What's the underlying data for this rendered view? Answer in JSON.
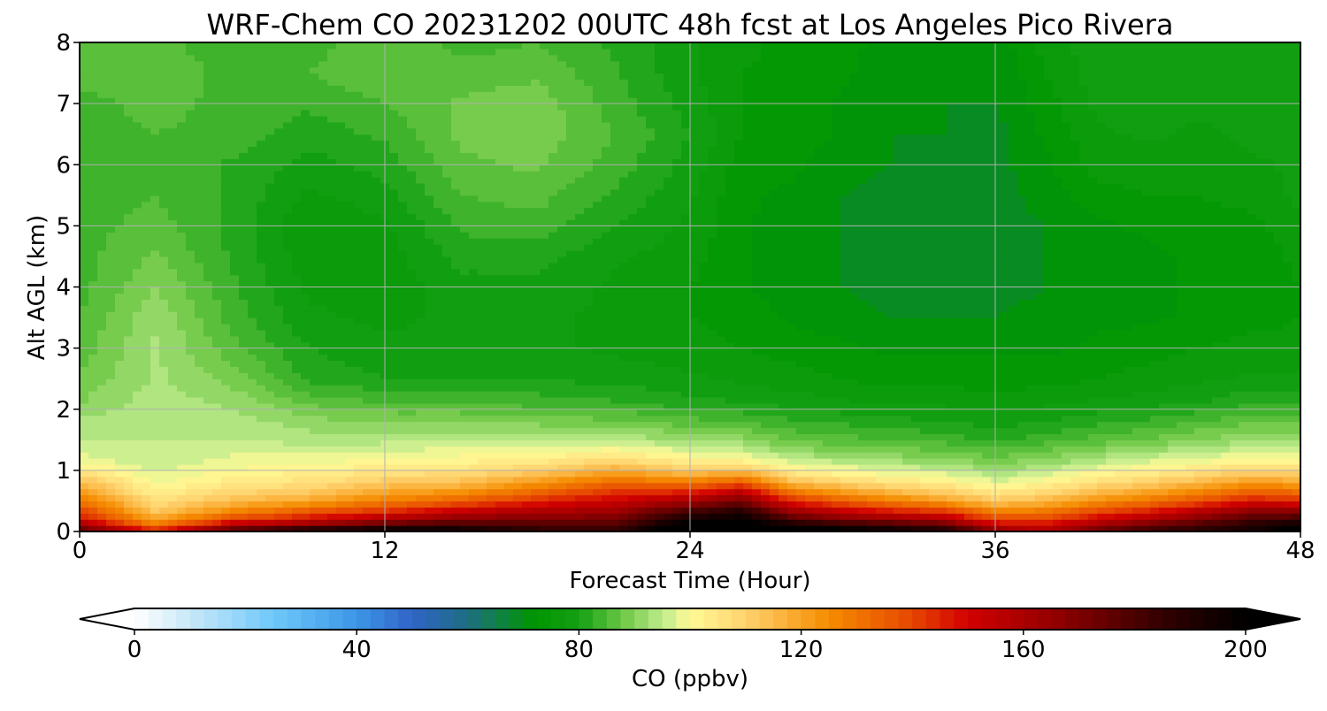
{
  "chart_data": {
    "type": "heatmap",
    "title": "WRF-Chem CO  20231202 00UTC 48h fcst at Los Angeles Pico Rivera",
    "xlabel": "Forecast Time (Hour)",
    "ylabel": "Alt AGL (km)",
    "xlim": [
      0,
      48
    ],
    "ylim": [
      0,
      8
    ],
    "x_ticks": [
      0,
      12,
      24,
      36,
      48
    ],
    "y_ticks": [
      0,
      1,
      2,
      3,
      4,
      5,
      6,
      7,
      8
    ],
    "grid": true,
    "colorbar": {
      "label": "CO  (ppbv)",
      "min": 0,
      "max": 200,
      "step": 2.5,
      "ticks": [
        0,
        40,
        80,
        120,
        160,
        200
      ],
      "extend": "both"
    },
    "x_hours": [
      0,
      3,
      6,
      9,
      12,
      15,
      18,
      21,
      24,
      26,
      28,
      30,
      32,
      34,
      36,
      38,
      40,
      42,
      44,
      46,
      48
    ],
    "heights_km": [
      0,
      0.1,
      0.2,
      0.35,
      0.5,
      0.7,
      0.9,
      1.1,
      1.3,
      1.5,
      1.8,
      2.1,
      2.5,
      3.0,
      3.5,
      4.0,
      4.5,
      5.0,
      5.5,
      6.0,
      6.5,
      7.0,
      7.5,
      8.0
    ],
    "columns": [
      [
        180,
        165,
        150,
        140,
        130,
        120,
        110,
        100,
        97,
        95,
        93,
        90,
        88,
        86,
        85,
        84,
        84,
        84,
        84,
        84,
        84,
        84,
        86,
        86
      ],
      [
        150,
        130,
        120,
        112,
        106,
        101,
        98,
        96,
        95,
        95,
        95,
        94,
        93,
        93,
        92,
        90,
        88,
        86,
        85,
        85,
        85,
        86,
        87,
        86
      ],
      [
        185,
        160,
        140,
        125,
        115,
        107,
        102,
        99,
        97,
        95,
        94,
        92,
        89,
        86,
        84,
        83,
        82,
        82,
        82,
        82,
        84,
        84,
        84,
        83
      ],
      [
        200,
        170,
        150,
        135,
        120,
        110,
        104,
        100,
        97,
        94,
        91,
        87,
        82,
        80,
        78,
        77,
        76,
        75,
        77,
        79,
        81,
        83,
        85,
        84
      ],
      [
        205,
        180,
        160,
        142,
        128,
        117,
        108,
        102,
        98,
        94,
        90,
        85,
        80,
        78,
        77,
        76,
        76,
        77,
        79,
        81,
        83,
        85,
        87,
        87
      ],
      [
        200,
        185,
        170,
        152,
        135,
        120,
        110,
        103,
        99,
        95,
        90,
        85,
        80,
        78,
        78,
        79,
        81,
        83,
        85,
        87,
        88,
        88,
        86,
        84
      ],
      [
        190,
        180,
        170,
        158,
        145,
        130,
        116,
        106,
        100,
        95,
        89,
        84,
        80,
        78,
        78,
        79,
        81,
        84,
        86,
        88,
        89,
        89,
        87,
        85
      ],
      [
        188,
        180,
        172,
        162,
        152,
        140,
        126,
        112,
        102,
        95,
        88,
        83,
        79,
        77,
        77,
        77,
        78,
        80,
        82,
        84,
        85,
        84,
        83,
        82
      ],
      [
        210,
        205,
        195,
        180,
        162,
        140,
        120,
        105,
        98,
        92,
        86,
        81,
        78,
        76,
        75,
        75,
        76,
        77,
        78,
        79,
        80,
        79,
        78,
        78
      ],
      [
        210,
        207,
        200,
        188,
        172,
        150,
        125,
        105,
        97,
        91,
        85,
        80,
        77,
        75,
        74,
        73,
        73,
        73,
        73,
        74,
        75,
        75,
        75,
        76
      ],
      [
        205,
        195,
        180,
        162,
        145,
        125,
        108,
        98,
        92,
        87,
        83,
        79,
        76,
        74,
        72,
        71,
        71,
        71,
        72,
        73,
        74,
        74,
        74,
        74
      ],
      [
        205,
        190,
        170,
        152,
        135,
        118,
        104,
        96,
        90,
        86,
        82,
        78,
        75,
        73,
        71,
        70,
        70,
        70,
        70,
        71,
        72,
        72,
        73,
        73
      ],
      [
        200,
        185,
        165,
        145,
        128,
        112,
        101,
        94,
        89,
        85,
        81,
        77,
        74,
        72,
        70,
        69,
        69,
        69,
        69,
        70,
        70,
        71,
        71,
        72
      ],
      [
        195,
        178,
        160,
        140,
        122,
        108,
        99,
        93,
        88,
        84,
        80,
        77,
        74,
        72,
        70,
        69,
        69,
        69,
        69,
        69,
        70,
        70,
        71,
        71
      ],
      [
        170,
        155,
        140,
        125,
        112,
        102,
        95,
        90,
        86,
        82,
        79,
        76,
        74,
        72,
        70,
        69,
        69,
        69,
        69,
        69,
        69,
        70,
        70,
        71
      ],
      [
        160,
        150,
        140,
        128,
        116,
        106,
        98,
        92,
        88,
        84,
        80,
        77,
        74,
        72,
        71,
        70,
        70,
        70,
        71,
        72,
        73,
        74,
        75,
        76
      ],
      [
        175,
        165,
        152,
        138,
        124,
        112,
        103,
        96,
        91,
        86,
        82,
        78,
        75,
        73,
        72,
        71,
        71,
        72,
        74,
        76,
        77,
        78,
        79,
        79
      ],
      [
        185,
        175,
        160,
        145,
        130,
        117,
        106,
        99,
        93,
        88,
        83,
        79,
        76,
        74,
        72,
        72,
        72,
        73,
        75,
        76,
        78,
        79,
        80,
        80
      ],
      [
        190,
        182,
        170,
        155,
        138,
        123,
        110,
        101,
        95,
        90,
        85,
        80,
        77,
        75,
        73,
        73,
        73,
        74,
        75,
        76,
        77,
        78,
        79,
        79
      ],
      [
        195,
        190,
        180,
        165,
        148,
        130,
        115,
        104,
        97,
        92,
        87,
        82,
        78,
        76,
        74,
        73,
        73,
        74,
        76,
        77,
        78,
        78,
        79,
        79
      ],
      [
        205,
        200,
        185,
        165,
        145,
        128,
        113,
        103,
        97,
        92,
        87,
        82,
        78,
        76,
        75,
        75,
        76,
        77,
        78,
        78,
        79,
        79,
        79,
        79
      ]
    ]
  }
}
